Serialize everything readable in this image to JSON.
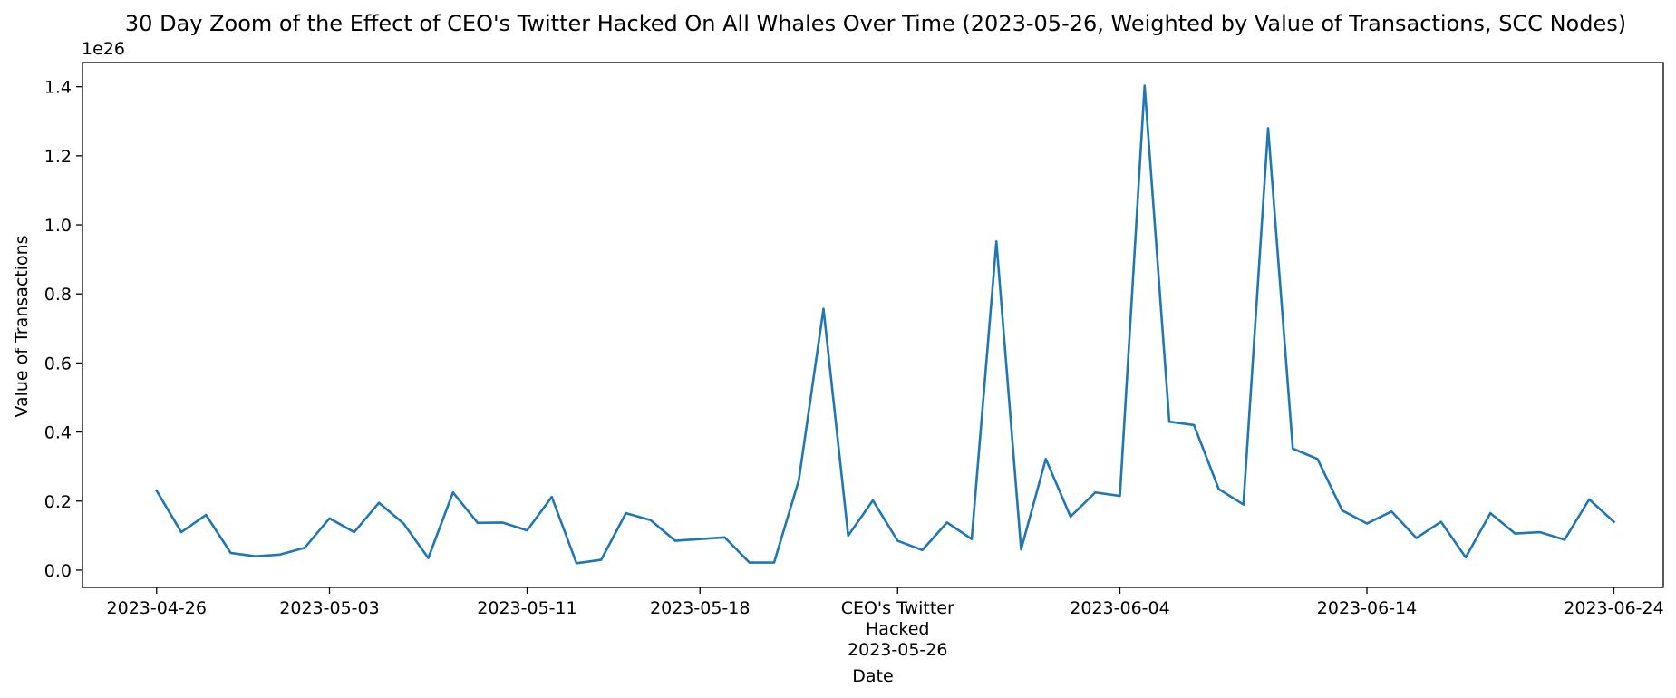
{
  "chart_data": {
    "type": "line",
    "title": "30 Day Zoom of the Effect of CEO's Twitter Hacked On All Whales Over Time (2023-05-26, Weighted by Value of Transactions, SCC Nodes)",
    "xlabel": "Date",
    "ylabel": "Value of Transactions",
    "y_offset_label": "1e26",
    "y_unit_multiplier": 1e+26,
    "xlim": [
      "2023-04-23",
      "2023-06-26"
    ],
    "ylim": [
      -0.05,
      1.47
    ],
    "y_ticks": [
      0.0,
      0.2,
      0.4,
      0.6,
      0.8,
      1.0,
      1.2,
      1.4
    ],
    "y_tick_labels": [
      "0.0",
      "0.2",
      "0.4",
      "0.6",
      "0.8",
      "1.0",
      "1.2",
      "1.4"
    ],
    "x_ticks": [
      {
        "date": "2023-04-26",
        "label": "2023-04-26"
      },
      {
        "date": "2023-05-03",
        "label": "2023-05-03"
      },
      {
        "date": "2023-05-11",
        "label": "2023-05-11"
      },
      {
        "date": "2023-05-18",
        "label": "2023-05-18"
      },
      {
        "date": "2023-05-26",
        "label": "CEO's Twitter\nHacked\n2023-05-26"
      },
      {
        "date": "2023-06-04",
        "label": "2023-06-04"
      },
      {
        "date": "2023-06-14",
        "label": "2023-06-14"
      },
      {
        "date": "2023-06-24",
        "label": "2023-06-24"
      }
    ],
    "grid": false,
    "series": [
      {
        "color": "#1f77b4",
        "x": [
          "2023-04-26",
          "2023-04-27",
          "2023-04-28",
          "2023-04-29",
          "2023-04-30",
          "2023-05-01",
          "2023-05-02",
          "2023-05-03",
          "2023-05-04",
          "2023-05-05",
          "2023-05-06",
          "2023-05-07",
          "2023-05-08",
          "2023-05-09",
          "2023-05-10",
          "2023-05-11",
          "2023-05-12",
          "2023-05-13",
          "2023-05-14",
          "2023-05-15",
          "2023-05-16",
          "2023-05-17",
          "2023-05-18",
          "2023-05-19",
          "2023-05-20",
          "2023-05-21",
          "2023-05-22",
          "2023-05-23",
          "2023-05-24",
          "2023-05-25",
          "2023-05-26",
          "2023-05-27",
          "2023-05-28",
          "2023-05-29",
          "2023-05-30",
          "2023-05-31",
          "2023-06-01",
          "2023-06-02",
          "2023-06-03",
          "2023-06-04",
          "2023-06-05",
          "2023-06-06",
          "2023-06-07",
          "2023-06-08",
          "2023-06-09",
          "2023-06-10",
          "2023-06-11",
          "2023-06-12",
          "2023-06-13",
          "2023-06-14",
          "2023-06-15",
          "2023-06-16",
          "2023-06-17",
          "2023-06-18",
          "2023-06-19",
          "2023-06-20",
          "2023-06-21",
          "2023-06-22",
          "2023-06-23",
          "2023-06-24"
        ],
        "values": [
          0.23,
          0.11,
          0.16,
          0.05,
          0.04,
          0.045,
          0.065,
          0.15,
          0.11,
          0.195,
          0.135,
          0.035,
          0.225,
          0.137,
          0.138,
          0.115,
          0.212,
          0.02,
          0.03,
          0.165,
          0.145,
          0.085,
          0.09,
          0.095,
          0.022,
          0.022,
          0.26,
          0.757,
          0.1,
          0.202,
          0.085,
          0.058,
          0.138,
          0.09,
          0.952,
          0.06,
          0.322,
          0.155,
          0.225,
          0.215,
          1.403,
          0.43,
          0.42,
          0.235,
          0.19,
          1.28,
          0.352,
          0.322,
          0.173,
          0.135,
          0.17,
          0.093,
          0.14,
          0.037,
          0.165,
          0.106,
          0.11,
          0.088,
          0.205,
          0.14
        ]
      }
    ]
  }
}
